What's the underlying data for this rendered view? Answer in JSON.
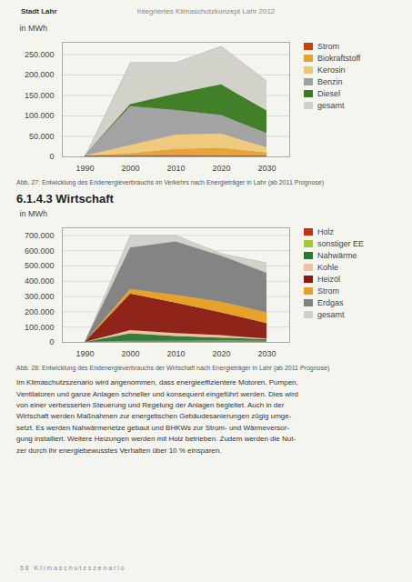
{
  "header_left": "Stadt Lahr",
  "header": "Integriertes Klimaschutzkonzept Lahr 2012",
  "chart_data": [
    {
      "type": "area",
      "stacked": true,
      "ylabel": "in MWh",
      "caption": "Abb. 27: Entwicklung des Endenergieverbrauchs im Verkehrs nach Energieträger in Lahr (ab 2011 Prognose)",
      "x": [
        1990,
        2000,
        2010,
        2020,
        2030
      ],
      "xlim": [
        1985,
        2035
      ],
      "xticks": [
        1990,
        2000,
        2010,
        2020,
        2030
      ],
      "ylim": [
        0,
        280000
      ],
      "yticks": [
        0,
        {
          "value": 50000,
          "label": "50.000"
        },
        {
          "value": 100000,
          "label": "100.000"
        },
        {
          "value": 150000,
          "label": "150.000"
        },
        {
          "value": 200000,
          "label": "200.000"
        },
        {
          "value": 250000,
          "label": "250.000"
        }
      ],
      "grid": true,
      "legend": "right",
      "series": [
        {
          "name": "Strom",
          "type": "stacked_area",
          "color": "#c8400a",
          "values": [
            2000,
            3000,
            3500,
            3000,
            2000
          ]
        },
        {
          "name": "Biokraftstoff",
          "type": "stacked_area",
          "color": "#e8a030",
          "values": [
            0,
            5000,
            15000,
            18000,
            8000
          ]
        },
        {
          "name": "Kerosin",
          "type": "stacked_area",
          "color": "#f0c878",
          "values": [
            0,
            20000,
            35000,
            35000,
            12000
          ]
        },
        {
          "name": "Benzin",
          "type": "stacked_area",
          "color": "#a0a0a0",
          "values": [
            0,
            95000,
            60000,
            45000,
            35000
          ]
        },
        {
          "name": "Diesel",
          "type": "stacked_area",
          "color": "#3a7a20",
          "values": [
            0,
            5000,
            40000,
            75000,
            55000
          ]
        },
        {
          "name": "gesamt",
          "type": "area",
          "color": "#d0d0c8",
          "values": [
            0,
            230000,
            230000,
            270000,
            185000
          ]
        }
      ]
    },
    {
      "type": "area",
      "stacked": true,
      "ylabel": "in MWh",
      "caption": "Abb. 28: Entwicklung des Endenergieverbrauchs der Wirtschaft nach Energieträger in Lahr (ab 2011 Prognose)",
      "x": [
        1990,
        2000,
        2010,
        2020,
        2030
      ],
      "xlim": [
        1985,
        2035
      ],
      "xticks": [
        1990,
        2000,
        2010,
        2020,
        2030
      ],
      "ylim": [
        0,
        750000
      ],
      "yticks": [
        0,
        {
          "value": 100000,
          "label": "100.000"
        },
        {
          "value": 200000,
          "label": "200.000"
        },
        {
          "value": 300000,
          "label": "300.000"
        },
        {
          "value": 400000,
          "label": "400.000"
        },
        {
          "value": 500000,
          "label": "500.000"
        },
        {
          "value": 600000,
          "label": "600.000"
        },
        {
          "value": 700000,
          "label": "700.000"
        }
      ],
      "grid": true,
      "legend": "right",
      "series": [
        {
          "name": "Holz",
          "type": "stacked_area",
          "color": "#c83010",
          "values": [
            0,
            5000,
            5000,
            5000,
            5000
          ]
        },
        {
          "name": "sonstiger EE",
          "type": "stacked_area",
          "color": "#a8c830",
          "values": [
            0,
            2000,
            3000,
            4000,
            3000
          ]
        },
        {
          "name": "Nahwärme",
          "type": "stacked_area",
          "color": "#287830",
          "values": [
            0,
            50000,
            30000,
            20000,
            10000
          ]
        },
        {
          "name": "Kohle",
          "type": "stacked_area",
          "color": "#f0c0a0",
          "values": [
            0,
            20000,
            20000,
            15000,
            5000
          ]
        },
        {
          "name": "Heizöl",
          "type": "stacked_area",
          "color": "#8b1a10",
          "values": [
            0,
            240000,
            200000,
            150000,
            100000
          ]
        },
        {
          "name": "Strom",
          "type": "stacked_area",
          "color": "#e8a020",
          "values": [
            0,
            30000,
            50000,
            70000,
            70000
          ]
        },
        {
          "name": "Erdgas",
          "type": "stacked_area",
          "color": "#808080",
          "values": [
            0,
            270000,
            350000,
            300000,
            260000
          ]
        },
        {
          "name": "gesamt",
          "type": "area",
          "color": "#d0d0c8",
          "values": [
            0,
            700000,
            700000,
            580000,
            520000
          ]
        }
      ]
    }
  ],
  "section_title": "6.1.4.3 Wirtschaft",
  "body_text": "Im Klimaschutzszenario wird angenommen, dass energieeffizientere Motoren, Pumpen,\nVentilatoren und ganze Anlagen schneller und konsequent eingeführt werden. Dies wird\nvon einer verbesserten Steuerung und Regelung der Anlagen begleitet. Auch in der\nWirtschaft werden Maßnahmen zur energetischen Gebäudesanierungen zügig umge-\nsetzt. Es werden Nahwärmenetze gebaut und BHKWs zur Strom- und Wärmeversor-\ngung installiert. Weitere Heizungen werden mit Holz betrieben. Zudem werden die Nut-\nzer durch ihr energiebewusstes Verhalten über 10 % einsparen.",
  "footer": "5 8   K l i m a s c h u t z s z e n a r i o"
}
